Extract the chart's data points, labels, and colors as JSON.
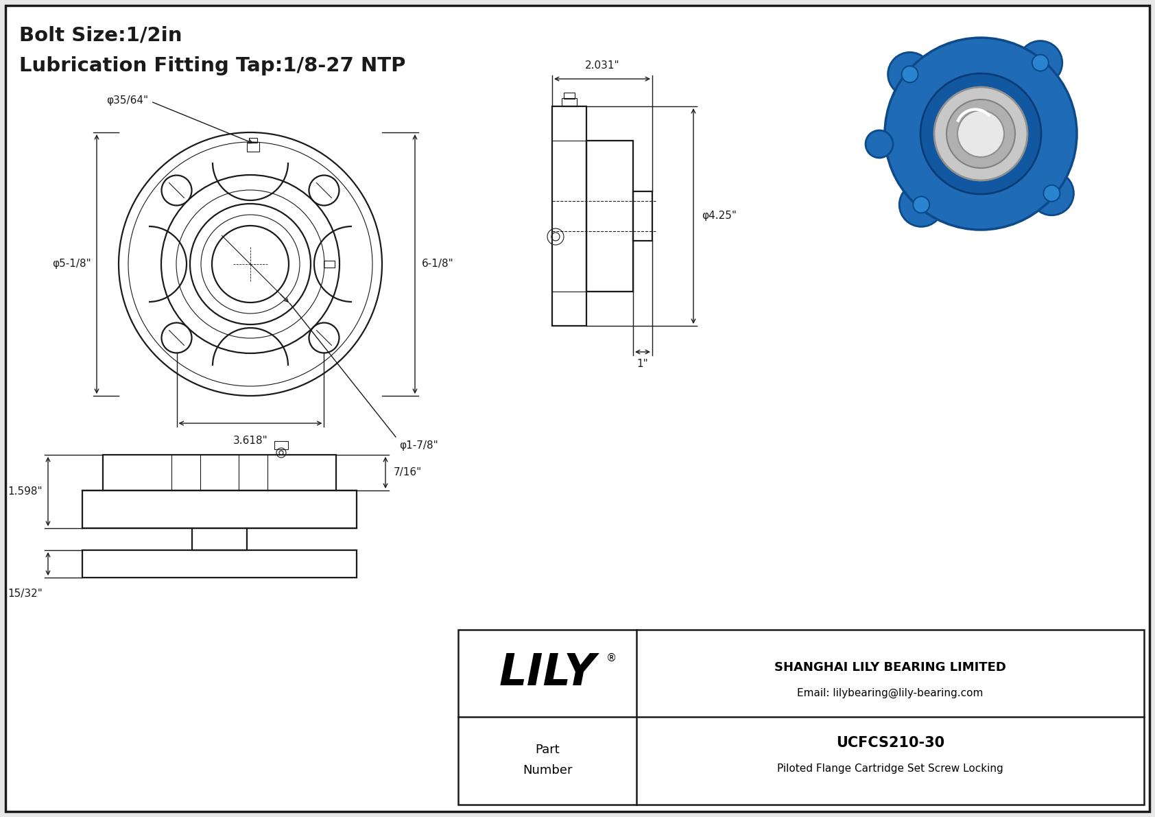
{
  "bg_color": "#e8e8e8",
  "line_color": "#1a1a1a",
  "title_line1": "Bolt Size:1/2in",
  "title_line2": "Lubrication Fitting Tap:1/8-27 NTP",
  "dim_phi_35_64": "φ35/64\"",
  "dim_phi_5_1_8": "φ5-1/8\"",
  "dim_6_1_8": "6-1/8\"",
  "dim_3_618": "3.618\"",
  "dim_phi_1_7_8": "φ1-7/8\"",
  "dim_2_031": "2.031\"",
  "dim_phi_4_25": "φ4.25\"",
  "dim_1": "1\"",
  "dim_7_16": "7/16\"",
  "dim_1_598": "1.598\"",
  "dim_15_32": "15/32\"",
  "company": "SHANGHAI LILY BEARING LIMITED",
  "email": "Email: lilybearing@lily-bearing.com",
  "part_number": "UCFCS210-30",
  "part_desc": "Piloted Flange Cartridge Set Screw Locking",
  "part_label": "Part\nNumber",
  "lily_text": "LILY"
}
